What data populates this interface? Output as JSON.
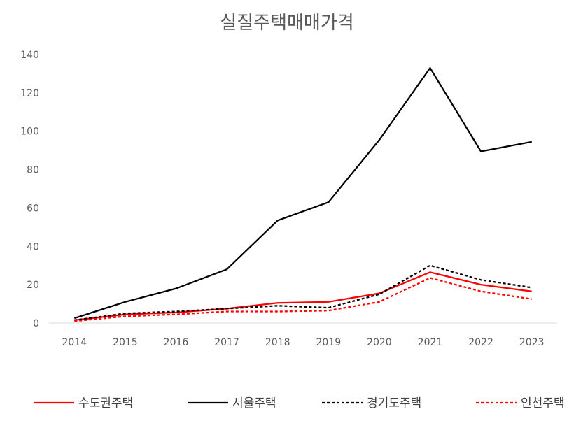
{
  "chart_data": {
    "type": "line",
    "title": "실질주택매매가격",
    "xlabel": "",
    "ylabel": "",
    "categories": [
      "2014",
      "2015",
      "2016",
      "2017",
      "2018",
      "2019",
      "2020",
      "2021",
      "2022",
      "2023"
    ],
    "ylim": [
      0,
      140
    ],
    "yticks": [
      "0",
      "20",
      "40",
      "60",
      "80",
      "100",
      "120",
      "140"
    ],
    "grid": false,
    "legend_position": "bottom",
    "series": [
      {
        "name": "수도권주택",
        "color": "#ff0000",
        "dash": "solid",
        "values": [
          1.5,
          4.5,
          5.5,
          7.5,
          10.5,
          11,
          15.5,
          26.5,
          20,
          16.5
        ]
      },
      {
        "name": "서울주택",
        "color": "#000000",
        "dash": "solid",
        "values": [
          2.5,
          11,
          18,
          28,
          53.5,
          63,
          95.5,
          133,
          89.5,
          94.5
        ]
      },
      {
        "name": "경기도주택",
        "color": "#000000",
        "dash": "dashed",
        "values": [
          1.5,
          5,
          6,
          7.5,
          9,
          8,
          15,
          30,
          22.5,
          18.5
        ]
      },
      {
        "name": "인천주택",
        "color": "#ff0000",
        "dash": "dashed",
        "values": [
          1,
          3.5,
          4.5,
          6,
          6,
          6.5,
          11,
          23.5,
          16.5,
          12.5
        ]
      }
    ]
  }
}
